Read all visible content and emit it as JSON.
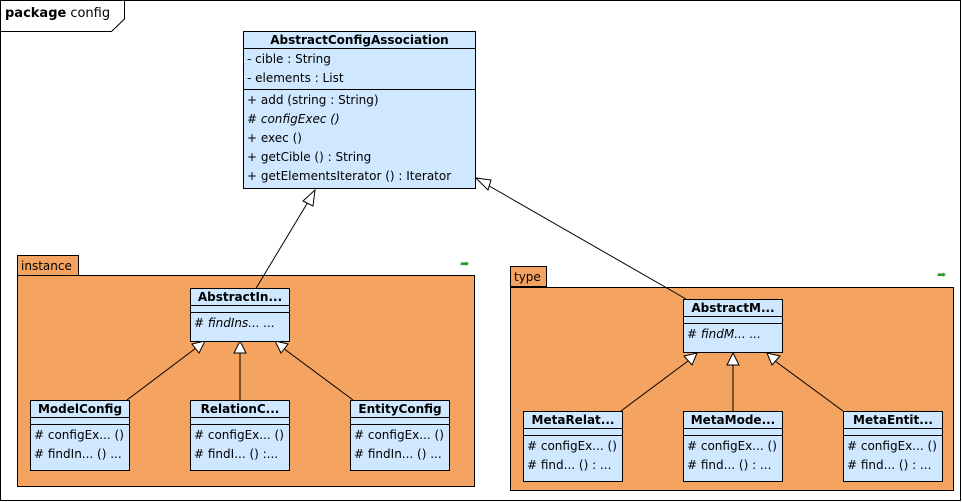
{
  "package": {
    "keyword": "package",
    "name": "config"
  },
  "subpackages": {
    "instance": {
      "label": "instance"
    },
    "type": {
      "label": "type"
    }
  },
  "classes": {
    "abstract_config_association": {
      "name": "AbstractConfigAssociation",
      "attributes": [
        "- cible   : String",
        "- elements  : List"
      ],
      "operations": [
        "+ add (string : String)",
        "# configExec  ()",
        "+ exec ()",
        "+ getCible () : String",
        "+ getElementsIterator () : Iterator"
      ]
    },
    "abstract_instance": {
      "name": "AbstractIn...",
      "operations": [
        "# findIns...    ..."
      ]
    },
    "model_config": {
      "name": "ModelConfig",
      "operations": [
        "# configEx... ()",
        "# findIn... () ..."
      ]
    },
    "relation_config": {
      "name": "RelationC...",
      "operations": [
        "# configEx... ()",
        "# findI...   () :..."
      ]
    },
    "entity_config": {
      "name": "EntityConfig",
      "operations": [
        "# configEx... ()",
        "# findIn... () ..."
      ]
    },
    "abstract_meta": {
      "name": "AbstractM...",
      "operations": [
        "# findM...      ..."
      ]
    },
    "meta_relation": {
      "name": "MetaRelat...",
      "operations": [
        "# configEx... ()",
        "# find...   () : ..."
      ]
    },
    "meta_model": {
      "name": "MetaMode...",
      "operations": [
        "# configEx... ()",
        "# find...   () : ..."
      ]
    },
    "meta_entity": {
      "name": "MetaEntit...",
      "operations": [
        "# configEx... ()",
        "# find...   () : ..."
      ]
    }
  }
}
